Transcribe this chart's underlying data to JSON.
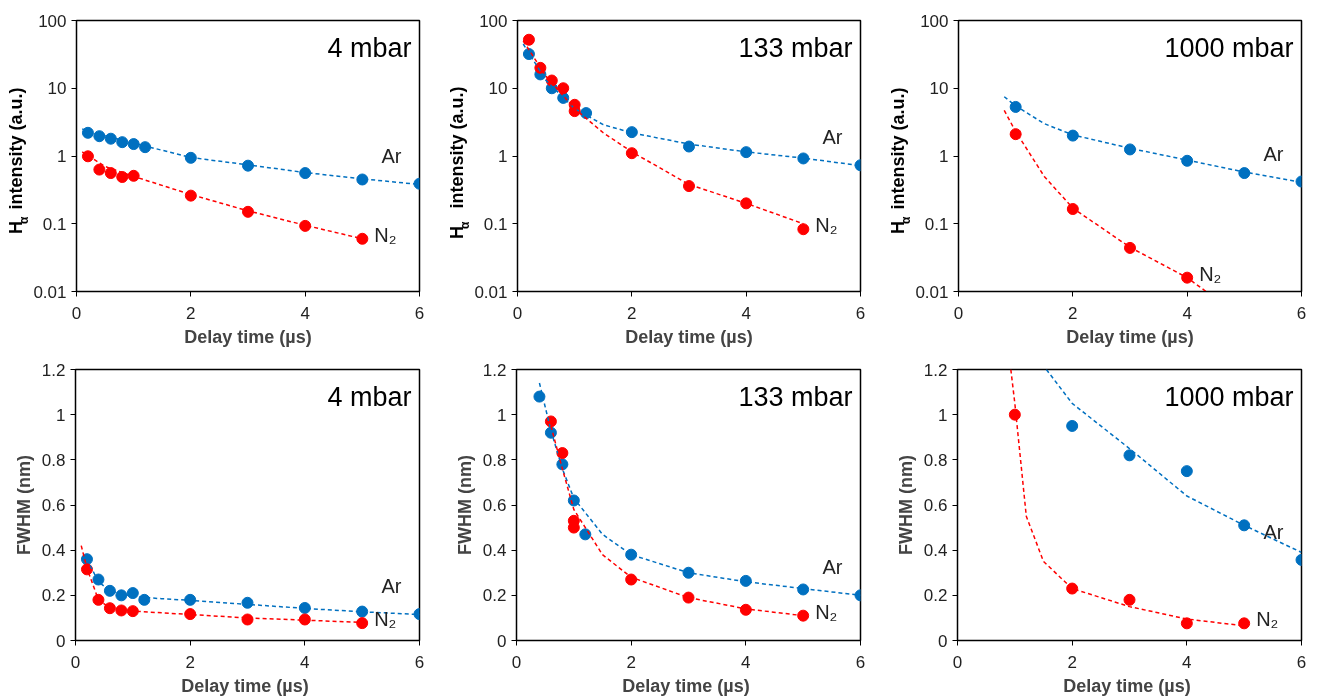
{
  "chart_data": [
    {
      "type": "scatter",
      "title": "4 mbar",
      "xlabel": "Delay time (µs)",
      "ylabel": "H$_{α}$ intensity (a.u.)",
      "log": "y",
      "marker": "circle",
      "xlim": [
        0,
        6
      ],
      "xticks": [
        0,
        2,
        4,
        6
      ],
      "ylim": [
        0.01,
        100
      ],
      "yticks": [
        0.01,
        0.1,
        1,
        10,
        100
      ],
      "series": [
        {
          "name": "Ar",
          "color": "#0070c0",
          "x": [
            0.2,
            0.4,
            0.6,
            0.8,
            1.0,
            1.2,
            2,
            3,
            4,
            5,
            6
          ],
          "values": [
            2.2,
            1.96,
            1.8,
            1.6,
            1.5,
            1.35,
            0.94,
            0.72,
            0.56,
            0.45,
            0.39
          ]
        },
        {
          "name": "N₂",
          "color": "#ff0000",
          "x": [
            0.2,
            0.4,
            0.6,
            0.8,
            1.0,
            2,
            3,
            4,
            5
          ],
          "values": [
            0.99,
            0.63,
            0.56,
            0.49,
            0.51,
            0.26,
            0.15,
            0.093,
            0.06
          ]
        },
        {
          "type": "line",
          "line_style": "dashed",
          "marker": "none",
          "color": "#0070c0",
          "x": [
            0.1,
            0.5,
            1,
            2,
            3,
            4,
            5,
            6
          ],
          "values": [
            2.5,
            2.0,
            1.55,
            0.95,
            0.74,
            0.57,
            0.46,
            0.38
          ]
        },
        {
          "type": "line",
          "line_style": "dashed",
          "marker": "none",
          "color": "#ff0000",
          "x": [
            0.1,
            0.5,
            1,
            2,
            3,
            4,
            5
          ],
          "values": [
            1.15,
            0.7,
            0.5,
            0.27,
            0.155,
            0.095,
            0.06
          ]
        }
      ]
    },
    {
      "type": "scatter",
      "title": "133 mbar",
      "xlabel": "Delay time (µs)",
      "ylabel": "H$_{α}$  intensity (a.u.)",
      "log": "y",
      "marker": "circle",
      "xlim": [
        0,
        6
      ],
      "xticks": [
        0,
        2,
        4,
        6
      ],
      "ylim": [
        0.01,
        100
      ],
      "yticks": [
        0.01,
        0.1,
        1,
        10,
        100
      ],
      "series": [
        {
          "name": "Ar",
          "color": "#0070c0",
          "x": [
            0.2,
            0.4,
            0.6,
            0.8,
            1.2,
            2,
            3,
            4,
            5,
            6
          ],
          "values": [
            32,
            16,
            10,
            7.2,
            4.3,
            2.25,
            1.38,
            1.14,
            0.92,
            0.73
          ]
        },
        {
          "name": "N₂",
          "color": "#ff0000",
          "x": [
            0.2,
            0.4,
            0.6,
            0.8,
            1.0,
            1.0,
            2,
            3,
            4,
            5
          ],
          "values": [
            52,
            20,
            13,
            10,
            5.7,
            4.6,
            1.1,
            0.36,
            0.2,
            0.083
          ]
        },
        {
          "type": "line",
          "line_style": "dashed",
          "marker": "none",
          "color": "#0070c0",
          "x": [
            0.1,
            0.5,
            1,
            1.5,
            2,
            3,
            4,
            5,
            6
          ],
          "values": [
            45,
            13,
            5,
            2.9,
            2.2,
            1.5,
            1.15,
            0.93,
            0.72
          ]
        },
        {
          "type": "line",
          "line_style": "dashed",
          "marker": "none",
          "color": "#ff0000",
          "x": [
            0.1,
            0.5,
            1,
            1.5,
            2,
            3,
            4,
            5
          ],
          "values": [
            50,
            15,
            5,
            2.2,
            1.15,
            0.38,
            0.2,
            0.1
          ]
        }
      ]
    },
    {
      "type": "scatter",
      "title": "1000 mbar",
      "xlabel": "Delay time (µs)",
      "ylabel": "H$_{α}$ intensity (a.u.)",
      "log": "y",
      "marker": "circle",
      "xlim": [
        0,
        6
      ],
      "xticks": [
        0,
        2,
        4,
        6
      ],
      "ylim": [
        0.01,
        100
      ],
      "yticks": [
        0.01,
        0.1,
        1,
        10,
        100
      ],
      "series": [
        {
          "name": "Ar",
          "color": "#0070c0",
          "x": [
            1,
            2,
            3,
            4,
            5,
            6
          ],
          "values": [
            5.3,
            2.0,
            1.25,
            0.85,
            0.56,
            0.42
          ]
        },
        {
          "name": "N₂",
          "color": "#ff0000",
          "x": [
            1,
            2,
            3,
            4
          ],
          "values": [
            2.1,
            0.165,
            0.044,
            0.016
          ]
        },
        {
          "type": "line",
          "line_style": "dashed",
          "marker": "none",
          "color": "#0070c0",
          "x": [
            0.8,
            1,
            1.5,
            2,
            3,
            4,
            5,
            6
          ],
          "values": [
            7.5,
            5.5,
            3,
            2.05,
            1.3,
            0.87,
            0.58,
            0.41
          ]
        },
        {
          "type": "line",
          "line_style": "dashed",
          "marker": "none",
          "color": "#ff0000",
          "x": [
            0.8,
            1,
            1.5,
            2,
            3,
            4,
            4.33
          ],
          "values": [
            4.7,
            2.3,
            0.5,
            0.17,
            0.045,
            0.016,
            0.01
          ]
        }
      ]
    },
    {
      "type": "scatter",
      "title": "4 mbar",
      "xlabel": "Delay time  (µs)",
      "ylabel": "FWHM (nm)",
      "marker": "circle",
      "xlim": [
        0,
        6
      ],
      "xticks": [
        0,
        2,
        4,
        6
      ],
      "ylim": [
        0,
        1.2
      ],
      "yticks": [
        0,
        0.2,
        0.4,
        0.6,
        0.8,
        1,
        1.2
      ],
      "series": [
        {
          "name": "Ar",
          "color": "#0070c0",
          "x": [
            0.2,
            0.4,
            0.6,
            0.8,
            1.0,
            1.2,
            2,
            3,
            4,
            5,
            6
          ],
          "values": [
            0.36,
            0.27,
            0.22,
            0.2,
            0.21,
            0.18,
            0.18,
            0.167,
            0.144,
            0.128,
            0.117
          ]
        },
        {
          "name": "N₂",
          "color": "#ff0000",
          "x": [
            0.2,
            0.4,
            0.6,
            0.8,
            1.0,
            2,
            3,
            4,
            5
          ],
          "values": [
            0.315,
            0.18,
            0.143,
            0.133,
            0.13,
            0.117,
            0.093,
            0.093,
            0.077
          ]
        },
        {
          "type": "line",
          "line_style": "dashed",
          "marker": "none",
          "color": "#0070c0",
          "x": [
            0.2,
            0.4,
            0.6,
            1,
            1.5,
            2,
            3,
            4,
            5,
            6
          ],
          "values": [
            0.36,
            0.26,
            0.22,
            0.195,
            0.185,
            0.178,
            0.16,
            0.142,
            0.127,
            0.115
          ]
        },
        {
          "type": "line",
          "line_style": "dashed",
          "marker": "none",
          "color": "#ff0000",
          "x": [
            0.1,
            0.2,
            0.4,
            0.6,
            1,
            2,
            3,
            4,
            5
          ],
          "values": [
            0.42,
            0.32,
            0.18,
            0.145,
            0.13,
            0.115,
            0.1,
            0.09,
            0.08
          ]
        }
      ]
    },
    {
      "type": "scatter",
      "title": "133 mbar",
      "xlabel": "Delay time  (µs)",
      "ylabel": "FWHM (nm)",
      "marker": "circle",
      "xlim": [
        0,
        6
      ],
      "xticks": [
        0,
        2,
        4,
        6
      ],
      "ylim": [
        0,
        1.2
      ],
      "yticks": [
        0,
        0.2,
        0.4,
        0.6,
        0.8,
        1,
        1.2
      ],
      "series": [
        {
          "name": "Ar",
          "color": "#0070c0",
          "x": [
            0.4,
            0.6,
            0.8,
            1.0,
            1.2,
            2,
            3,
            4,
            5,
            6
          ],
          "values": [
            1.08,
            0.92,
            0.78,
            0.62,
            0.47,
            0.38,
            0.3,
            0.264,
            0.226,
            0.2
          ]
        },
        {
          "name": "N₂",
          "color": "#ff0000",
          "x": [
            0.6,
            0.8,
            1.0,
            1.0,
            2,
            3,
            4,
            5
          ],
          "values": [
            0.97,
            0.83,
            0.53,
            0.5,
            0.27,
            0.19,
            0.136,
            0.11
          ]
        },
        {
          "type": "line",
          "line_style": "dashed",
          "marker": "none",
          "color": "#0070c0",
          "x": [
            0.4,
            0.6,
            0.8,
            1,
            1.5,
            2,
            3,
            4,
            5,
            6
          ],
          "values": [
            1.14,
            0.93,
            0.76,
            0.63,
            0.47,
            0.38,
            0.3,
            0.26,
            0.23,
            0.2
          ]
        },
        {
          "type": "line",
          "line_style": "dashed",
          "marker": "none",
          "color": "#ff0000",
          "x": [
            0.6,
            0.8,
            1,
            1.5,
            2,
            3,
            4,
            5
          ],
          "values": [
            0.95,
            0.76,
            0.58,
            0.38,
            0.28,
            0.19,
            0.14,
            0.11
          ]
        }
      ]
    },
    {
      "type": "scatter",
      "title": "1000 mbar",
      "xlabel": "Delay time  (µs)",
      "ylabel": "FWHM (nm)",
      "marker": "circle",
      "xlim": [
        0,
        6
      ],
      "xticks": [
        0,
        2,
        4,
        6
      ],
      "ylim": [
        0,
        1.2
      ],
      "yticks": [
        0,
        0.2,
        0.4,
        0.6,
        0.8,
        1,
        1.2
      ],
      "series": [
        {
          "name": "Ar",
          "color": "#0070c0",
          "x": [
            2,
            3,
            4,
            5,
            6
          ],
          "values": [
            0.95,
            0.82,
            0.75,
            0.51,
            0.357
          ]
        },
        {
          "name": "N₂",
          "color": "#ff0000",
          "x": [
            1,
            2,
            3,
            4,
            5
          ],
          "values": [
            1.0,
            0.23,
            0.18,
            0.076,
            0.076
          ]
        },
        {
          "type": "line",
          "line_style": "dashed",
          "marker": "none",
          "color": "#0070c0",
          "x": [
            1.55,
            2,
            3,
            4,
            5,
            6
          ],
          "values": [
            1.2,
            1.05,
            0.85,
            0.64,
            0.51,
            0.39
          ]
        },
        {
          "type": "line",
          "line_style": "dashed",
          "marker": "none",
          "color": "#ff0000",
          "x": [
            0.93,
            1,
            1.2,
            1.5,
            2,
            3,
            4,
            5
          ],
          "values": [
            1.2,
            1.05,
            0.55,
            0.35,
            0.23,
            0.15,
            0.095,
            0.065
          ]
        }
      ]
    }
  ]
}
